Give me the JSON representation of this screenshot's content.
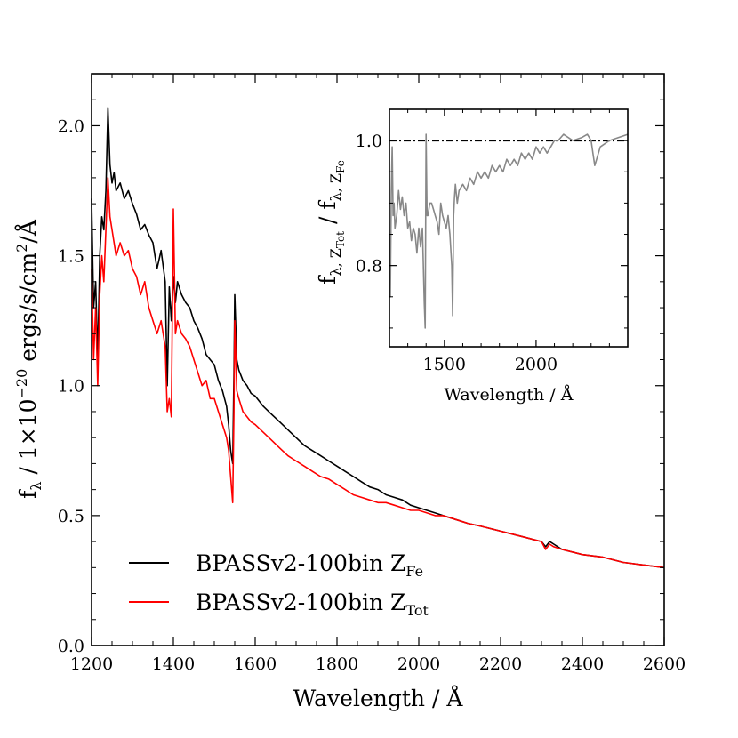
{
  "chart_data": [
    {
      "type": "line",
      "title": "",
      "xlabel": "Wavelength / Å",
      "ylabel": "fλ / 1×10⁻²⁰ ergs/s/cm²/Å",
      "ylabel_parts": {
        "f": "f",
        "lambda": "λ",
        "mid": " / 1×10",
        "exp": "−20",
        "unit": " ergs/s/cm",
        "unit_exp": "2",
        "tail": "/Å"
      },
      "xlim": [
        1200,
        2600
      ],
      "ylim": [
        0.0,
        2.2
      ],
      "xticks": [
        1200,
        1400,
        1600,
        1800,
        2000,
        2200,
        2400,
        2600
      ],
      "xtick_labels": [
        "1200",
        "1400",
        "1600",
        "1800",
        "2000",
        "2200",
        "2400",
        "2600"
      ],
      "yticks": [
        0.0,
        0.5,
        1.0,
        1.5,
        2.0
      ],
      "ytick_labels": [
        "0.0",
        "0.5",
        "1.0",
        "1.5",
        "2.0"
      ],
      "grid": false,
      "legend_position": "lower-left",
      "series": [
        {
          "name": "BPASSv2-100bin Z_Fe",
          "label_main": "BPASSv2-100bin Z",
          "label_sub": "Fe",
          "color": "#000000",
          "x": [
            1200,
            1205,
            1210,
            1215,
            1220,
            1225,
            1230,
            1235,
            1240,
            1245,
            1250,
            1255,
            1260,
            1270,
            1280,
            1290,
            1300,
            1310,
            1320,
            1330,
            1340,
            1350,
            1360,
            1370,
            1380,
            1385,
            1390,
            1395,
            1400,
            1405,
            1410,
            1420,
            1430,
            1440,
            1450,
            1460,
            1470,
            1480,
            1490,
            1500,
            1510,
            1520,
            1530,
            1535,
            1540,
            1545,
            1548,
            1550,
            1555,
            1560,
            1570,
            1580,
            1590,
            1600,
            1620,
            1640,
            1660,
            1680,
            1700,
            1720,
            1740,
            1760,
            1780,
            1800,
            1820,
            1840,
            1860,
            1880,
            1900,
            1920,
            1940,
            1960,
            1980,
            2000,
            2020,
            2040,
            2060,
            2080,
            2100,
            2120,
            2150,
            2200,
            2250,
            2300,
            2310,
            2320,
            2330,
            2350,
            2400,
            2450,
            2500,
            2550,
            2600
          ],
          "y": [
            1.72,
            1.3,
            1.4,
            1.1,
            1.5,
            1.65,
            1.6,
            1.75,
            2.07,
            1.85,
            1.78,
            1.82,
            1.75,
            1.78,
            1.72,
            1.75,
            1.7,
            1.66,
            1.6,
            1.62,
            1.58,
            1.55,
            1.45,
            1.52,
            1.4,
            1.0,
            1.38,
            1.25,
            1.42,
            1.32,
            1.4,
            1.35,
            1.32,
            1.3,
            1.25,
            1.22,
            1.18,
            1.12,
            1.1,
            1.08,
            1.02,
            0.98,
            0.92,
            0.85,
            0.75,
            0.7,
            1.05,
            1.35,
            1.1,
            1.06,
            1.02,
            1.0,
            0.97,
            0.96,
            0.92,
            0.89,
            0.86,
            0.83,
            0.8,
            0.77,
            0.75,
            0.73,
            0.71,
            0.69,
            0.67,
            0.65,
            0.63,
            0.61,
            0.6,
            0.58,
            0.57,
            0.56,
            0.54,
            0.53,
            0.52,
            0.51,
            0.5,
            0.49,
            0.48,
            0.47,
            0.46,
            0.44,
            0.42,
            0.4,
            0.38,
            0.4,
            0.39,
            0.37,
            0.35,
            0.34,
            0.32,
            0.31,
            0.3
          ]
        },
        {
          "name": "BPASSv2-100bin Z_Tot",
          "label_main": "BPASSv2-100bin Z",
          "label_sub": "Tot",
          "color": "#ff0000",
          "x": [
            1200,
            1205,
            1210,
            1215,
            1220,
            1225,
            1230,
            1235,
            1240,
            1245,
            1250,
            1255,
            1260,
            1270,
            1280,
            1290,
            1300,
            1310,
            1320,
            1330,
            1340,
            1350,
            1360,
            1370,
            1380,
            1385,
            1390,
            1395,
            1400,
            1405,
            1410,
            1420,
            1430,
            1440,
            1450,
            1460,
            1470,
            1480,
            1490,
            1500,
            1510,
            1520,
            1530,
            1535,
            1540,
            1545,
            1548,
            1550,
            1555,
            1560,
            1570,
            1580,
            1590,
            1600,
            1620,
            1640,
            1660,
            1680,
            1700,
            1720,
            1740,
            1760,
            1780,
            1800,
            1820,
            1840,
            1860,
            1880,
            1900,
            1920,
            1940,
            1960,
            1980,
            2000,
            2020,
            2040,
            2060,
            2080,
            2100,
            2120,
            2150,
            2200,
            2250,
            2300,
            2310,
            2320,
            2330,
            2350,
            2400,
            2450,
            2500,
            2550,
            2600
          ],
          "y": [
            1.45,
            1.1,
            1.3,
            1.0,
            1.35,
            1.5,
            1.4,
            1.6,
            1.8,
            1.65,
            1.6,
            1.55,
            1.5,
            1.55,
            1.5,
            1.52,
            1.45,
            1.42,
            1.35,
            1.4,
            1.3,
            1.25,
            1.2,
            1.25,
            1.15,
            0.9,
            0.95,
            0.88,
            1.68,
            1.2,
            1.25,
            1.2,
            1.18,
            1.15,
            1.1,
            1.05,
            1.0,
            1.02,
            0.95,
            0.95,
            0.9,
            0.85,
            0.8,
            0.75,
            0.65,
            0.55,
            0.9,
            1.25,
            0.98,
            0.95,
            0.9,
            0.88,
            0.86,
            0.85,
            0.82,
            0.79,
            0.76,
            0.73,
            0.71,
            0.69,
            0.67,
            0.65,
            0.64,
            0.62,
            0.6,
            0.58,
            0.57,
            0.56,
            0.55,
            0.55,
            0.54,
            0.53,
            0.52,
            0.52,
            0.51,
            0.5,
            0.5,
            0.49,
            0.48,
            0.47,
            0.46,
            0.44,
            0.42,
            0.4,
            0.37,
            0.39,
            0.38,
            0.37,
            0.35,
            0.34,
            0.32,
            0.31,
            0.3
          ]
        }
      ]
    },
    {
      "type": "line",
      "title": "",
      "xlabel": "Wavelength / Å",
      "ylabel": "fλ, Z_Tot / fλ, Z_Fe",
      "ylabel_parts": {
        "f1": "f",
        "sub1": "λ, Z",
        "subsub1": "Tot",
        "mid": " / f",
        "sub2": "λ, Z",
        "subsub2": "Fe"
      },
      "xlim": [
        1200,
        2500
      ],
      "ylim": [
        0.67,
        1.05
      ],
      "xticks": [
        1500,
        2000
      ],
      "xtick_labels": [
        "1500",
        "2000"
      ],
      "yticks": [
        0.8,
        1.0
      ],
      "ytick_labels": [
        "0.8",
        "1.0"
      ],
      "grid": false,
      "reference_line": {
        "y": 1.0,
        "style": "dash-dot",
        "color": "#000000"
      },
      "series": [
        {
          "name": "",
          "color": "#888888",
          "x": [
            1200,
            1205,
            1210,
            1215,
            1220,
            1225,
            1230,
            1240,
            1250,
            1260,
            1270,
            1280,
            1290,
            1300,
            1310,
            1320,
            1330,
            1340,
            1350,
            1360,
            1370,
            1380,
            1390,
            1395,
            1400,
            1405,
            1410,
            1420,
            1430,
            1440,
            1450,
            1460,
            1470,
            1480,
            1490,
            1500,
            1510,
            1520,
            1530,
            1540,
            1545,
            1550,
            1555,
            1560,
            1570,
            1580,
            1600,
            1620,
            1640,
            1660,
            1680,
            1700,
            1720,
            1740,
            1760,
            1780,
            1800,
            1820,
            1840,
            1860,
            1880,
            1900,
            1920,
            1940,
            1960,
            1980,
            2000,
            2020,
            2040,
            2060,
            2080,
            2100,
            2120,
            2150,
            2200,
            2250,
            2280,
            2300,
            2310,
            2320,
            2350,
            2400,
            2450,
            2500
          ],
          "y": [
            0.85,
            0.75,
            0.92,
            0.99,
            0.88,
            0.9,
            0.86,
            0.88,
            0.92,
            0.89,
            0.91,
            0.88,
            0.9,
            0.86,
            0.87,
            0.84,
            0.86,
            0.85,
            0.82,
            0.86,
            0.83,
            0.86,
            0.74,
            0.7,
            1.01,
            0.88,
            0.88,
            0.9,
            0.9,
            0.89,
            0.88,
            0.87,
            0.85,
            0.9,
            0.88,
            0.87,
            0.86,
            0.88,
            0.85,
            0.8,
            0.72,
            0.88,
            0.91,
            0.93,
            0.9,
            0.92,
            0.93,
            0.92,
            0.94,
            0.93,
            0.95,
            0.94,
            0.95,
            0.94,
            0.96,
            0.95,
            0.96,
            0.95,
            0.97,
            0.96,
            0.97,
            0.96,
            0.98,
            0.97,
            0.98,
            0.97,
            0.99,
            0.98,
            0.99,
            0.98,
            0.99,
            1.0,
            1.0,
            1.01,
            1.0,
            1.005,
            1.01,
            1.0,
            0.98,
            0.96,
            0.99,
            1.0,
            1.005,
            1.01
          ]
        }
      ]
    }
  ]
}
